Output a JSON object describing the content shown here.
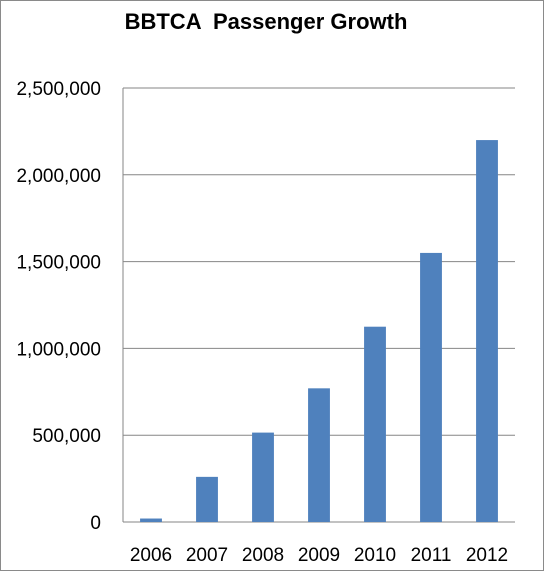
{
  "chart_data": {
    "type": "bar",
    "title": "BBTCA  Passenger Growth",
    "categories": [
      "2006",
      "2007",
      "2008",
      "2009",
      "2010",
      "2011",
      "2012"
    ],
    "values": [
      20000,
      260000,
      515000,
      770000,
      1125000,
      1550000,
      2200000
    ],
    "yticks": [
      "0",
      "500,000",
      "1,000,000",
      "1,500,000",
      "2,000,000",
      "2,500,000"
    ],
    "ylim": [
      0,
      2500000
    ],
    "grid": true,
    "legend": "none",
    "xlabel": "",
    "ylabel": "",
    "bar_color": "#4f81bd",
    "gridline_color": "#868686"
  }
}
